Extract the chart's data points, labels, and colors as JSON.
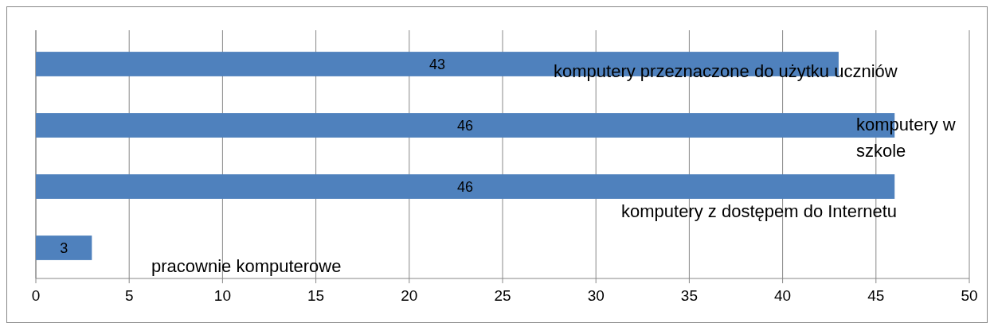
{
  "chart_data": {
    "type": "bar",
    "orientation": "horizontal",
    "categories": [
      "komputery przeznaczone do użytku uczniów",
      "komputery w szkole",
      "komputery z dostępem do Internetu",
      "pracownie komputerowe"
    ],
    "values": [
      43,
      46,
      46,
      3
    ],
    "color": "#4f81bd",
    "data_labels": true,
    "xlim": [
      0,
      50
    ],
    "xticks": [
      0,
      5,
      10,
      15,
      20,
      25,
      30,
      35,
      40,
      45,
      50
    ],
    "grid": "x",
    "tick_labels": "x"
  }
}
